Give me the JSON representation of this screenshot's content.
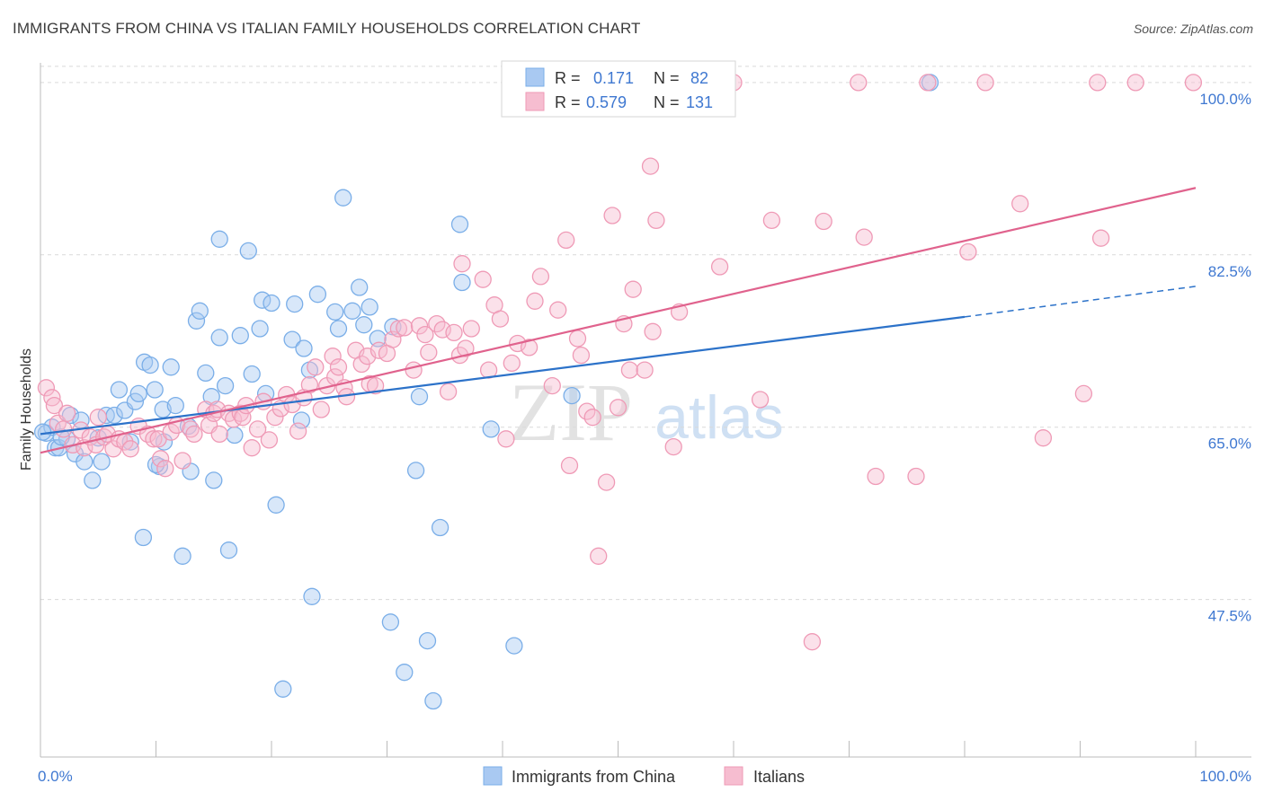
{
  "header": {
    "title": "IMMIGRANTS FROM CHINA VS ITALIAN FAMILY HOUSEHOLDS CORRELATION CHART",
    "source": "Source: ZipAtlas.com"
  },
  "watermark": {
    "zip": "ZIP",
    "atlas": "atlas"
  },
  "legend_box": {
    "rows": [
      {
        "r_label": "R =",
        "r_value": "0.171",
        "n_label": "N =",
        "n_value": "82"
      },
      {
        "r_label": "R =",
        "r_value": "0.579",
        "n_label": "N =",
        "n_value": "131"
      }
    ]
  },
  "colors": {
    "blue_fill": "#a9c9f2",
    "blue_stroke": "#7aaee8",
    "blue_line": "#2c72c9",
    "pink_fill": "#f6bdd0",
    "pink_stroke": "#ef9ab6",
    "pink_line": "#e0628d",
    "value_text": "#3f78d1",
    "grid": "#d9d9d9"
  },
  "chart_data": {
    "type": "scatter",
    "title": "IMMIGRANTS FROM CHINA VS ITALIAN FAMILY HOUSEHOLDS CORRELATION CHART",
    "xlabel": "",
    "ylabel": "Family Households",
    "xlim": [
      0,
      100
    ],
    "ylim": [
      31.5,
      102
    ],
    "x_tick_labels": [
      "0.0%",
      "100.0%"
    ],
    "y_ticks": [
      47.5,
      65.0,
      82.5,
      100.0
    ],
    "y_tick_labels": [
      "47.5%",
      "65.0%",
      "82.5%",
      "100.0%"
    ],
    "grid": true,
    "series": [
      {
        "name": "Immigrants from China",
        "color": "#7aaee8",
        "trend": {
          "x0": 0,
          "y0": 64.3,
          "x1": 80,
          "y1": 76.2,
          "dash_x1": 100,
          "dash_y1": 79.3
        },
        "points": [
          [
            0.5,
            64.4
          ],
          [
            1.0,
            65.0
          ],
          [
            1.3,
            62.9
          ],
          [
            1.6,
            62.9
          ],
          [
            2.3,
            63.8
          ],
          [
            2.6,
            66.2
          ],
          [
            3.0,
            62.3
          ],
          [
            3.5,
            65.7
          ],
          [
            3.8,
            61.5
          ],
          [
            4.5,
            59.6
          ],
          [
            5.0,
            63.9
          ],
          [
            5.3,
            61.5
          ],
          [
            5.7,
            66.2
          ],
          [
            6.4,
            66.2
          ],
          [
            6.8,
            68.8
          ],
          [
            7.3,
            66.7
          ],
          [
            7.8,
            63.5
          ],
          [
            8.2,
            67.6
          ],
          [
            8.5,
            68.4
          ],
          [
            8.9,
            53.8
          ],
          [
            9.0,
            71.6
          ],
          [
            9.5,
            71.3
          ],
          [
            9.9,
            68.8
          ],
          [
            10.3,
            61.0
          ],
          [
            10.6,
            66.8
          ],
          [
            10.7,
            63.5
          ],
          [
            11.3,
            71.1
          ],
          [
            11.7,
            67.2
          ],
          [
            12.3,
            51.9
          ],
          [
            12.8,
            65.1
          ],
          [
            13.0,
            60.5
          ],
          [
            13.5,
            75.8
          ],
          [
            13.8,
            76.8
          ],
          [
            14.3,
            70.5
          ],
          [
            14.8,
            68.1
          ],
          [
            15.0,
            59.6
          ],
          [
            15.5,
            74.1
          ],
          [
            15.5,
            84.1
          ],
          [
            16.0,
            69.2
          ],
          [
            16.3,
            52.5
          ],
          [
            17.3,
            74.3
          ],
          [
            18.0,
            82.9
          ],
          [
            18.3,
            70.4
          ],
          [
            19.0,
            75.0
          ],
          [
            19.2,
            77.9
          ],
          [
            19.5,
            68.4
          ],
          [
            20.0,
            77.6
          ],
          [
            20.4,
            57.1
          ],
          [
            21.0,
            38.4
          ],
          [
            21.8,
            73.9
          ],
          [
            22.0,
            77.5
          ],
          [
            22.8,
            73.0
          ],
          [
            22.6,
            65.7
          ],
          [
            23.3,
            70.8
          ],
          [
            23.5,
            47.8
          ],
          [
            24.0,
            78.5
          ],
          [
            25.5,
            76.7
          ],
          [
            25.8,
            75.0
          ],
          [
            26.2,
            88.3
          ],
          [
            27.0,
            76.8
          ],
          [
            27.6,
            79.2
          ],
          [
            28.0,
            75.4
          ],
          [
            28.5,
            77.2
          ],
          [
            29.2,
            74.0
          ],
          [
            30.3,
            45.2
          ],
          [
            30.5,
            75.2
          ],
          [
            31.5,
            40.1
          ],
          [
            32.5,
            60.6
          ],
          [
            32.8,
            68.1
          ],
          [
            33.5,
            43.3
          ],
          [
            34.0,
            37.2
          ],
          [
            34.6,
            54.8
          ],
          [
            36.3,
            85.6
          ],
          [
            36.5,
            79.7
          ],
          [
            39.0,
            64.8
          ],
          [
            41.0,
            42.8
          ],
          [
            46.0,
            68.2
          ],
          [
            77.0,
            100.0
          ],
          [
            0.2,
            64.5
          ],
          [
            1.8,
            64.0
          ],
          [
            10.0,
            61.2
          ],
          [
            16.8,
            64.2
          ]
        ]
      },
      {
        "name": "Italians",
        "color": "#ef9ab6",
        "trend": {
          "x0": 0,
          "y0": 62.4,
          "x1": 100,
          "y1": 89.3
        },
        "points": [
          [
            0.5,
            69.0
          ],
          [
            1.0,
            68.0
          ],
          [
            1.2,
            67.2
          ],
          [
            1.5,
            65.4
          ],
          [
            2.0,
            64.8
          ],
          [
            2.3,
            66.4
          ],
          [
            2.8,
            63.2
          ],
          [
            3.5,
            64.7
          ],
          [
            3.8,
            62.9
          ],
          [
            4.3,
            64.0
          ],
          [
            4.8,
            63.2
          ],
          [
            5.0,
            66.0
          ],
          [
            5.5,
            64.0
          ],
          [
            5.8,
            64.3
          ],
          [
            6.3,
            62.8
          ],
          [
            6.8,
            63.8
          ],
          [
            7.3,
            63.5
          ],
          [
            7.8,
            62.8
          ],
          [
            8.5,
            65.1
          ],
          [
            9.3,
            64.3
          ],
          [
            9.8,
            63.8
          ],
          [
            10.4,
            61.8
          ],
          [
            10.2,
            63.8
          ],
          [
            10.8,
            60.8
          ],
          [
            11.3,
            64.5
          ],
          [
            11.8,
            65.2
          ],
          [
            12.3,
            61.6
          ],
          [
            13.0,
            64.8
          ],
          [
            13.3,
            64.3
          ],
          [
            14.3,
            66.8
          ],
          [
            14.6,
            65.2
          ],
          [
            15.0,
            66.4
          ],
          [
            15.3,
            66.8
          ],
          [
            15.5,
            64.3
          ],
          [
            16.3,
            66.4
          ],
          [
            16.7,
            65.8
          ],
          [
            17.3,
            66.4
          ],
          [
            17.5,
            66.0
          ],
          [
            17.8,
            67.2
          ],
          [
            18.3,
            62.9
          ],
          [
            18.8,
            64.8
          ],
          [
            19.3,
            67.6
          ],
          [
            19.8,
            63.7
          ],
          [
            20.3,
            66.0
          ],
          [
            20.8,
            66.9
          ],
          [
            21.3,
            68.3
          ],
          [
            21.8,
            67.3
          ],
          [
            22.3,
            64.6
          ],
          [
            22.8,
            68.0
          ],
          [
            23.3,
            69.3
          ],
          [
            23.8,
            71.1
          ],
          [
            24.3,
            66.8
          ],
          [
            24.8,
            69.2
          ],
          [
            25.3,
            72.2
          ],
          [
            25.5,
            70.1
          ],
          [
            25.8,
            71.1
          ],
          [
            26.3,
            69.0
          ],
          [
            26.5,
            68.1
          ],
          [
            27.3,
            72.8
          ],
          [
            27.8,
            71.4
          ],
          [
            28.3,
            72.2
          ],
          [
            28.5,
            69.4
          ],
          [
            29.0,
            69.2
          ],
          [
            29.3,
            72.8
          ],
          [
            30.0,
            72.5
          ],
          [
            30.5,
            73.9
          ],
          [
            31.0,
            75.0
          ],
          [
            31.5,
            75.1
          ],
          [
            32.3,
            70.8
          ],
          [
            32.8,
            75.3
          ],
          [
            33.3,
            74.4
          ],
          [
            33.6,
            72.6
          ],
          [
            34.3,
            75.5
          ],
          [
            34.8,
            74.9
          ],
          [
            35.3,
            68.6
          ],
          [
            35.8,
            74.6
          ],
          [
            36.3,
            72.3
          ],
          [
            36.5,
            81.6
          ],
          [
            36.8,
            73.0
          ],
          [
            37.3,
            75.0
          ],
          [
            38.3,
            80.0
          ],
          [
            38.8,
            70.8
          ],
          [
            39.3,
            77.4
          ],
          [
            39.8,
            76.0
          ],
          [
            40.3,
            63.8
          ],
          [
            40.8,
            71.5
          ],
          [
            41.3,
            73.5
          ],
          [
            42.3,
            73.1
          ],
          [
            42.8,
            77.8
          ],
          [
            43.3,
            80.3
          ],
          [
            44.3,
            69.2
          ],
          [
            44.8,
            76.9
          ],
          [
            45.5,
            84.0
          ],
          [
            45.8,
            61.1
          ],
          [
            46.5,
            74.0
          ],
          [
            46.8,
            72.3
          ],
          [
            47.3,
            66.6
          ],
          [
            47.8,
            66.0
          ],
          [
            48.3,
            51.9
          ],
          [
            49.0,
            59.4
          ],
          [
            49.5,
            86.5
          ],
          [
            50.0,
            67.0
          ],
          [
            50.5,
            75.5
          ],
          [
            51.0,
            70.8
          ],
          [
            51.3,
            79.0
          ],
          [
            52.3,
            70.8
          ],
          [
            52.8,
            91.5
          ],
          [
            53.0,
            74.7
          ],
          [
            53.3,
            86.0
          ],
          [
            54.8,
            63.0
          ],
          [
            55.3,
            76.7
          ],
          [
            58.8,
            81.3
          ],
          [
            60.0,
            100.0
          ],
          [
            62.3,
            67.8
          ],
          [
            63.3,
            86.0
          ],
          [
            66.8,
            43.2
          ],
          [
            67.8,
            85.9
          ],
          [
            70.8,
            100.0
          ],
          [
            71.3,
            84.3
          ],
          [
            72.3,
            60.0
          ],
          [
            75.8,
            60.0
          ],
          [
            76.8,
            100.0
          ],
          [
            80.3,
            82.8
          ],
          [
            81.8,
            100.0
          ],
          [
            84.8,
            87.7
          ],
          [
            86.8,
            63.9
          ],
          [
            90.3,
            68.4
          ],
          [
            91.5,
            100.0
          ],
          [
            91.8,
            84.2
          ],
          [
            94.8,
            100.0
          ],
          [
            99.8,
            100.0
          ]
        ]
      }
    ]
  }
}
